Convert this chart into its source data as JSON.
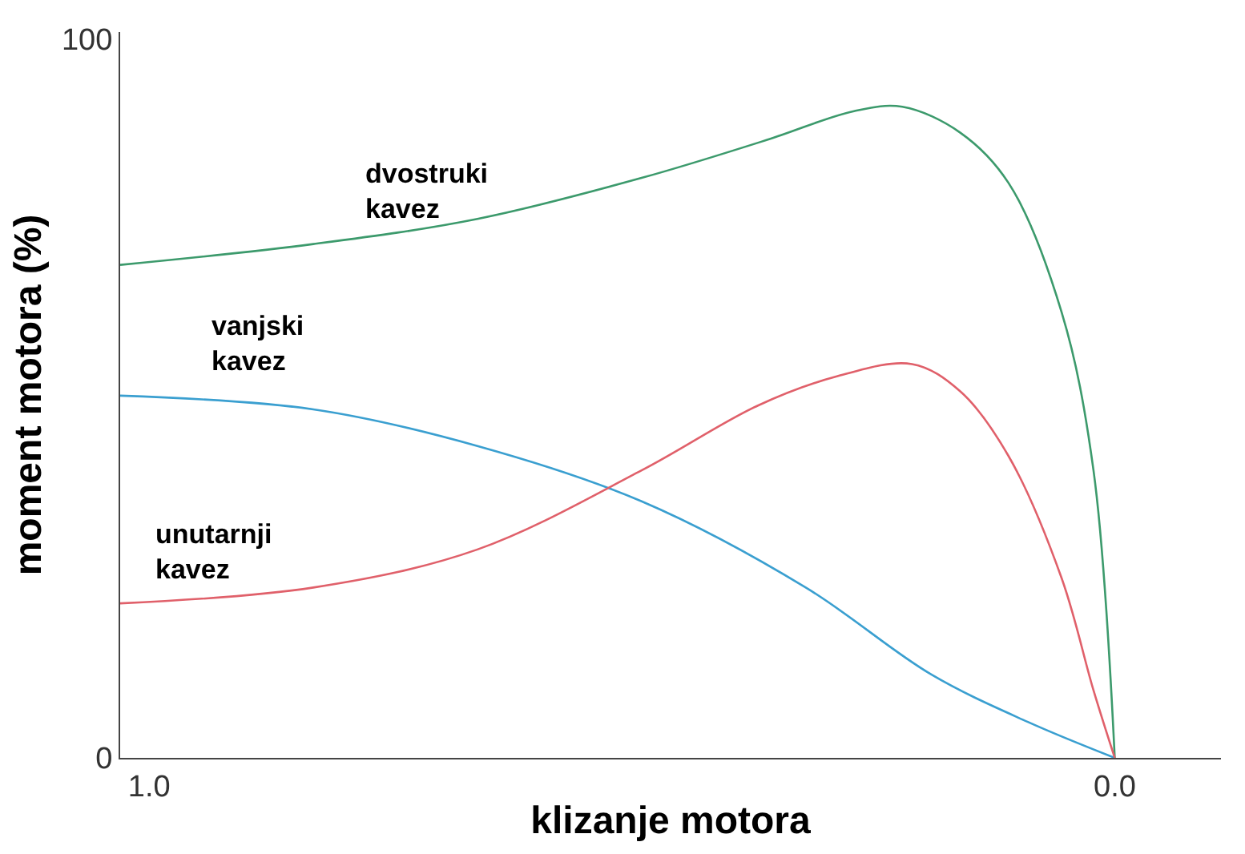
{
  "chart_data": {
    "type": "line",
    "xlabel": "klizanje motora",
    "ylabel": "moment motora (%)",
    "xlim": [
      1.03,
      -0.11
    ],
    "ylim": [
      0,
      101
    ],
    "xticks": [
      {
        "value": 1,
        "label": "1.0"
      },
      {
        "value": 0,
        "label": "0.0"
      }
    ],
    "yticks": [
      0,
      100
    ],
    "legend": false,
    "marker": "none",
    "line_style": "solid",
    "series": [
      {
        "name": "dvostruki\nkavez",
        "color": "#3c9a6c",
        "x": [
          1.03,
          0.83,
          0.66,
          0.49,
          0.36,
          0.27,
          0.22,
          0.16,
          0.11,
          0.055,
          0.022,
          0
        ],
        "values": [
          68.6,
          71.5,
          75,
          80.7,
          86,
          90,
          90.6,
          87,
          80,
          62,
          40,
          0
        ]
      },
      {
        "name": "vanjski\nkavez",
        "color": "#3a9fd0",
        "x": [
          1.03,
          0.83,
          0.66,
          0.49,
          0.32,
          0.19,
          0.09,
          0
        ],
        "values": [
          50.4,
          48.5,
          43.4,
          35.7,
          23.7,
          11.6,
          5,
          0
        ]
      },
      {
        "name": "unutarnji\nkavez",
        "color": "#e0606a",
        "x": [
          1.03,
          0.83,
          0.66,
          0.49,
          0.37,
          0.29,
          0.21,
          0.16,
          0.11,
          0.055,
          0.022,
          0
        ],
        "values": [
          21.5,
          23.7,
          29,
          40,
          49,
          53,
          54.8,
          51,
          42,
          25,
          9.4,
          0
        ]
      }
    ]
  }
}
